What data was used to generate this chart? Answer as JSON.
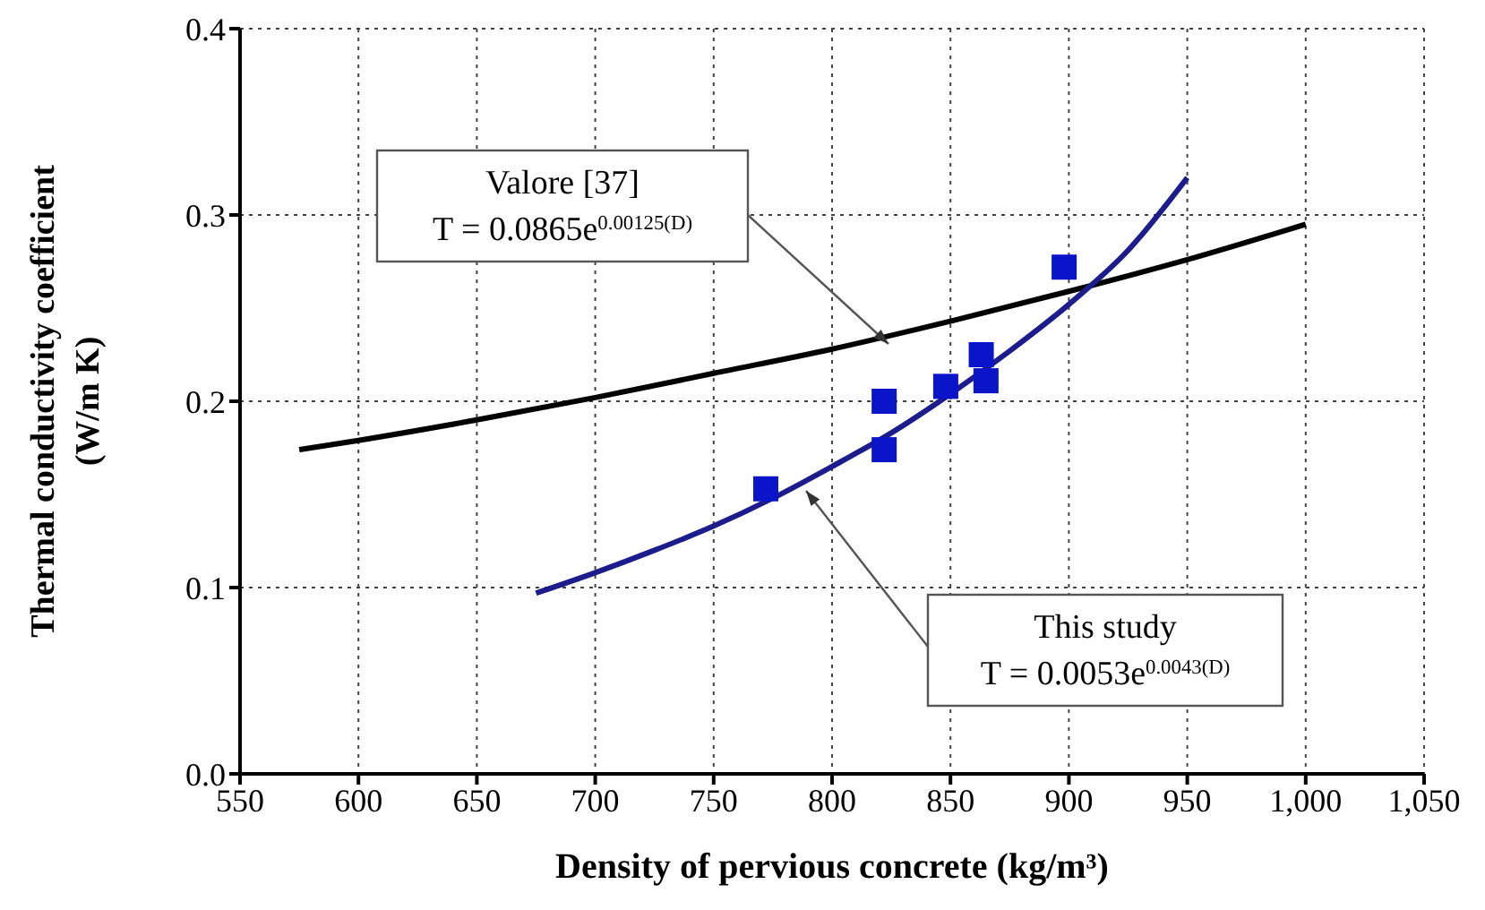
{
  "chart_data": {
    "type": "scatter",
    "xlabel": "Density of pervious concrete (kg/m³)",
    "ylabel": "Thermal conductivity coefficient\n(W/m K)",
    "xlim": [
      550,
      1050
    ],
    "xticks": [
      550,
      600,
      650,
      700,
      750,
      800,
      850,
      900,
      950,
      {
        "value": 1000,
        "label": "1,000"
      },
      {
        "value": 1050,
        "label": "1,050"
      }
    ],
    "ylim": [
      0,
      0.4
    ],
    "yticks": [
      {
        "value": 0,
        "label": "0.0"
      },
      0.1,
      0.2,
      0.3,
      0.4
    ],
    "grid": true,
    "series": [
      {
        "type": "line",
        "color": "#000000",
        "marker": "none",
        "x": [
          575,
          600,
          650,
          700,
          750,
          800,
          850,
          900,
          950,
          1000
        ],
        "values": [
          0.174,
          0.179,
          0.19,
          0.202,
          0.215,
          0.228,
          0.243,
          0.259,
          0.276,
          0.295
        ]
      },
      {
        "type": "line",
        "color": "#1c1c8c",
        "marker": "none",
        "x": [
          675,
          700,
          725,
          750,
          775,
          800,
          825,
          850,
          875,
          900,
          925,
          950
        ],
        "values": [
          0.097,
          0.108,
          0.12,
          0.133,
          0.148,
          0.165,
          0.183,
          0.204,
          0.227,
          0.252,
          0.281,
          0.32
        ]
      },
      {
        "color": "#0a14c8",
        "marker": "square",
        "x": [
          772,
          822,
          822,
          848,
          863,
          865,
          898
        ],
        "values": [
          0.153,
          0.174,
          0.2,
          0.208,
          0.225,
          0.211,
          0.272
        ]
      }
    ],
    "annotations": [
      "Valore [37]\nT = 0.0865e$^{0.00125(D)}$",
      "This study\nT = 0.0053e$^{0.0043(D)}$"
    ]
  }
}
